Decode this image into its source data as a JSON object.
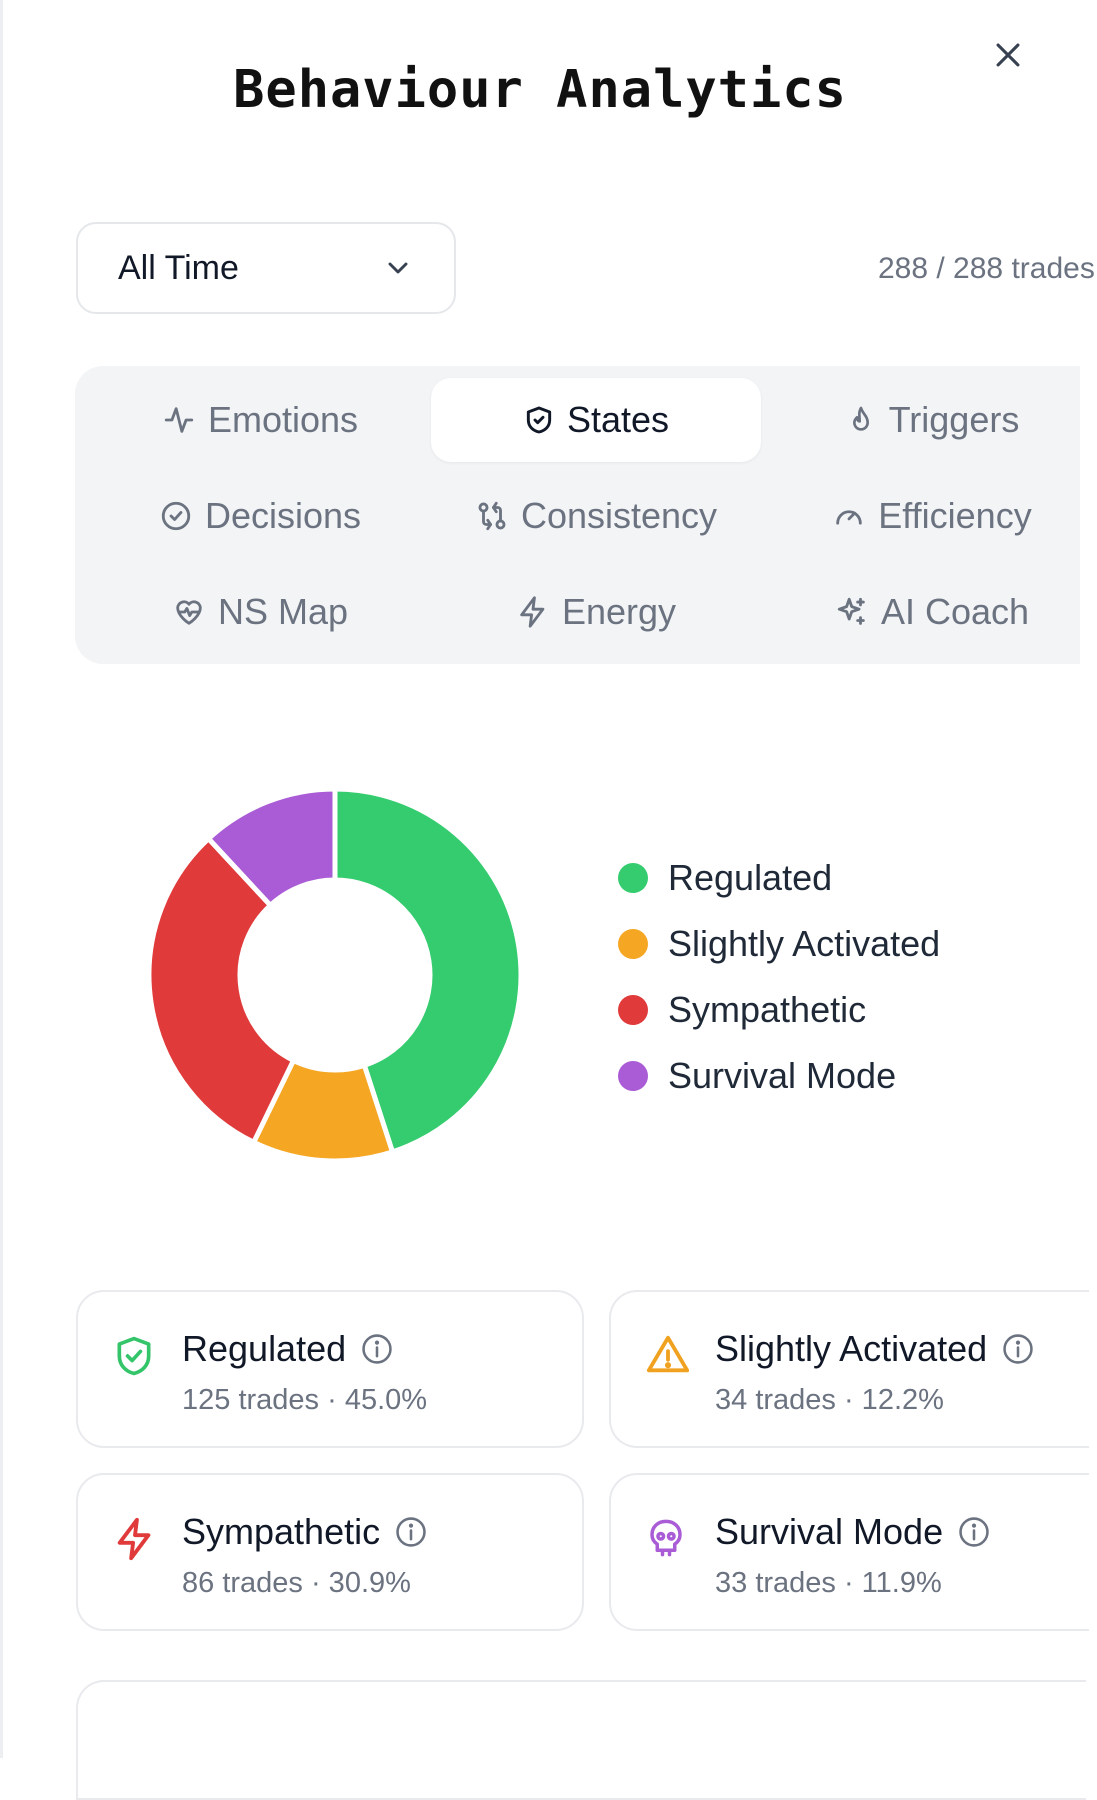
{
  "header": {
    "title": "Behaviour Analytics"
  },
  "filter": {
    "selected": "All Time",
    "trade_count": "288 / 288 trades"
  },
  "tabs": [
    {
      "label": "Emotions",
      "icon": "activity-icon"
    },
    {
      "label": "States",
      "icon": "shield-icon",
      "active": true
    },
    {
      "label": "Triggers",
      "icon": "flame-icon"
    },
    {
      "label": "Decisions",
      "icon": "check-circle-icon"
    },
    {
      "label": "Consistency",
      "icon": "git-compare-icon"
    },
    {
      "label": "Efficiency",
      "icon": "gauge-icon"
    },
    {
      "label": "NS Map",
      "icon": "heart-pulse-icon"
    },
    {
      "label": "Energy",
      "icon": "zap-icon"
    },
    {
      "label": "AI Coach",
      "icon": "sparkles-icon"
    }
  ],
  "chart_data": {
    "type": "pie",
    "donut": true,
    "legend_position": "right",
    "categories": [
      "Regulated",
      "Slightly Activated",
      "Sympathetic",
      "Survival Mode"
    ],
    "values": [
      45.0,
      12.2,
      30.9,
      11.9
    ],
    "colors": [
      "#34cc6e",
      "#f5a623",
      "#e03a3a",
      "#a95cd6"
    ]
  },
  "states": [
    {
      "name": "Regulated",
      "detail": "125 trades · 45.0%",
      "icon": "shield-check-icon",
      "color": "#34c46a"
    },
    {
      "name": "Slightly Activated",
      "detail": "34 trades · 12.2%",
      "icon": "alert-triangle-icon",
      "color": "#f0a11f"
    },
    {
      "name": "Sympathetic",
      "detail": "86 trades · 30.9%",
      "icon": "zap-icon",
      "color": "#e03a3a"
    },
    {
      "name": "Survival Mode",
      "detail": "33 trades · 11.9%",
      "icon": "skull-icon",
      "color": "#a95cd6"
    }
  ]
}
